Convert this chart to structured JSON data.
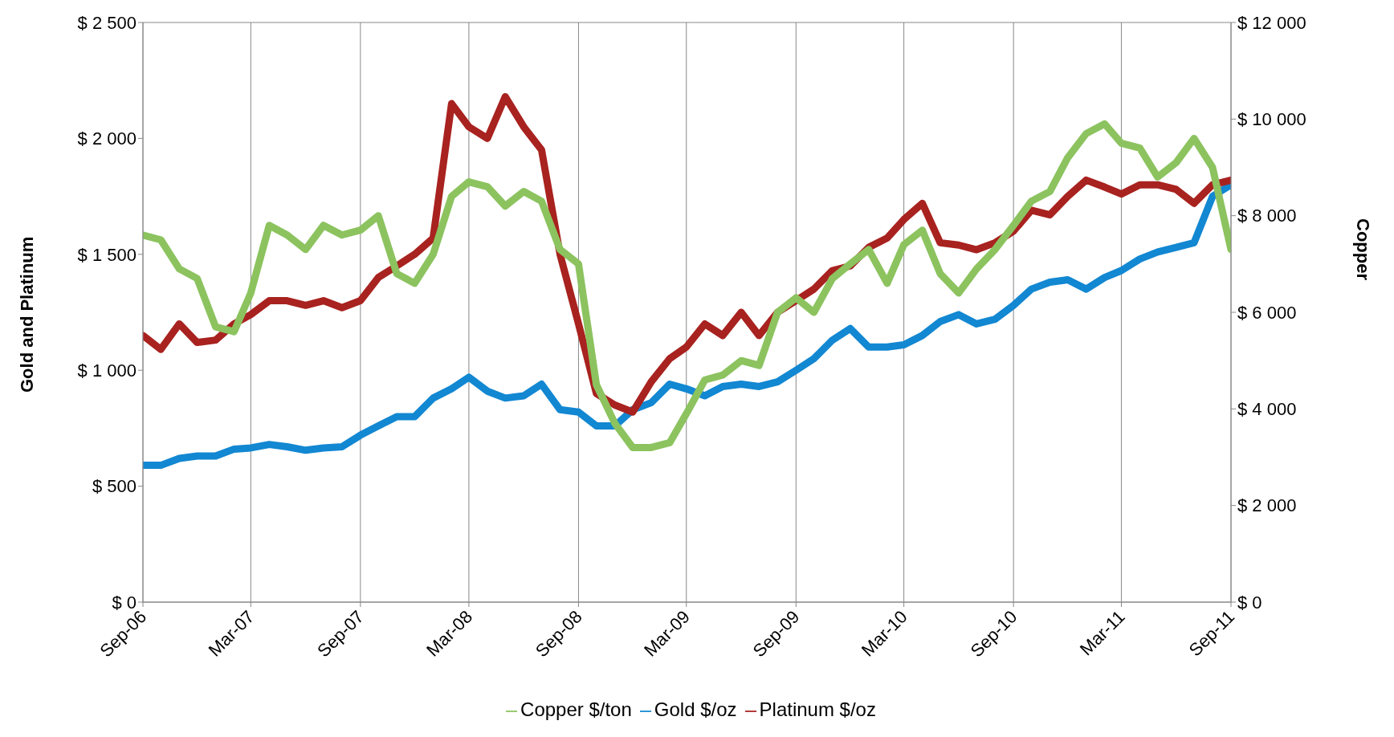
{
  "chart_data": {
    "type": "line",
    "ylabel": "Gold and Platinum",
    "y2label": "Copper",
    "x": [
      "2006-09",
      "2006-10",
      "2006-11",
      "2006-12",
      "2007-01",
      "2007-02",
      "2007-03",
      "2007-04",
      "2007-05",
      "2007-06",
      "2007-07",
      "2007-08",
      "2007-09",
      "2007-10",
      "2007-11",
      "2007-12",
      "2008-01",
      "2008-02",
      "2008-03",
      "2008-04",
      "2008-05",
      "2008-06",
      "2008-07",
      "2008-08",
      "2008-09",
      "2008-10",
      "2008-11",
      "2008-12",
      "2009-01",
      "2009-02",
      "2009-03",
      "2009-04",
      "2009-05",
      "2009-06",
      "2009-07",
      "2009-08",
      "2009-09",
      "2009-10",
      "2009-11",
      "2009-12",
      "2010-01",
      "2010-02",
      "2010-03",
      "2010-04",
      "2010-05",
      "2010-06",
      "2010-07",
      "2010-08",
      "2010-09",
      "2010-10",
      "2010-11",
      "2010-12",
      "2011-01",
      "2011-02",
      "2011-03",
      "2011-04",
      "2011-05",
      "2011-06",
      "2011-07",
      "2011-08",
      "2011-09"
    ],
    "series": [
      {
        "name": "Gold $/oz",
        "color": "#1287d2",
        "values": [
          590,
          590,
          620,
          630,
          630,
          660,
          665,
          680,
          670,
          655,
          665,
          670,
          720,
          760,
          800,
          800,
          880,
          920,
          970,
          910,
          880,
          890,
          940,
          830,
          820,
          760,
          760,
          830,
          860,
          940,
          920,
          890,
          930,
          940,
          930,
          950,
          1000,
          1050,
          1130,
          1180,
          1100,
          1100,
          1110,
          1150,
          1210,
          1240,
          1200,
          1220,
          1280,
          1350,
          1380,
          1390,
          1350,
          1400,
          1430,
          1480,
          1510,
          1530,
          1550,
          1750,
          1800
        ]
      },
      {
        "name": "Platinum $/oz",
        "color": "#a8221f",
        "values": [
          1150,
          1090,
          1200,
          1120,
          1130,
          1200,
          1240,
          1300,
          1300,
          1280,
          1300,
          1270,
          1300,
          1400,
          1450,
          1500,
          1570,
          2150,
          2050,
          2000,
          2180,
          2050,
          1950,
          1500,
          1200,
          900,
          850,
          820,
          950,
          1050,
          1100,
          1200,
          1150,
          1250,
          1150,
          1250,
          1300,
          1350,
          1430,
          1450,
          1530,
          1570,
          1650,
          1720,
          1550,
          1540,
          1520,
          1550,
          1600,
          1690,
          1670,
          1750,
          1820,
          1790,
          1760,
          1800,
          1800,
          1780,
          1720,
          1800,
          1820
        ]
      },
      {
        "name": "Copper $/ton",
        "color": "#8cc35f",
        "axis": "y2",
        "values": [
          7600,
          7500,
          6900,
          6700,
          5700,
          5600,
          6400,
          7800,
          7600,
          7300,
          7800,
          7600,
          7700,
          8000,
          6800,
          6600,
          7200,
          8400,
          8700,
          8600,
          8200,
          8500,
          8300,
          7300,
          7000,
          4500,
          3700,
          3200,
          3200,
          3300,
          3900,
          4600,
          4700,
          5000,
          4900,
          6000,
          6300,
          6000,
          6700,
          7000,
          7300,
          6600,
          7400,
          7700,
          6800,
          6400,
          6900,
          7300,
          7800,
          8300,
          8500,
          9200,
          9700,
          9900,
          9500,
          9400,
          8800,
          9100,
          9600,
          9000,
          7300
        ]
      }
    ],
    "xlim": [
      "2006-09",
      "2011-09"
    ],
    "xticks": [
      {
        "value": "2006-09",
        "label": "Sep-06"
      },
      {
        "value": "2007-03",
        "label": "Mar-07"
      },
      {
        "value": "2007-09",
        "label": "Sep-07"
      },
      {
        "value": "2008-03",
        "label": "Mar-08"
      },
      {
        "value": "2008-09",
        "label": "Sep-08"
      },
      {
        "value": "2009-03",
        "label": "Mar-09"
      },
      {
        "value": "2009-09",
        "label": "Sep-09"
      },
      {
        "value": "2010-03",
        "label": "Mar-10"
      },
      {
        "value": "2010-09",
        "label": "Sep-10"
      },
      {
        "value": "2011-03",
        "label": "Mar-11"
      },
      {
        "value": "2011-09",
        "label": "Sep-11"
      }
    ],
    "ylim": [
      0,
      2500
    ],
    "yticks": [
      {
        "value": 0,
        "label": "$ 0"
      },
      {
        "value": 500,
        "label": "$ 500"
      },
      {
        "value": 1000,
        "label": "$ 1 000"
      },
      {
        "value": 1500,
        "label": "$ 1 500"
      },
      {
        "value": 2000,
        "label": "$ 2 000"
      },
      {
        "value": 2500,
        "label": "$ 2 500"
      }
    ],
    "y2lim": [
      0,
      12000
    ],
    "y2ticks": [
      {
        "value": 0,
        "label": "$ 0"
      },
      {
        "value": 2000,
        "label": "$ 2 000"
      },
      {
        "value": 4000,
        "label": "$ 4 000"
      },
      {
        "value": 6000,
        "label": "$ 6 000"
      },
      {
        "value": 8000,
        "label": "$ 8 000"
      },
      {
        "value": 10000,
        "label": "$ 10 000"
      },
      {
        "value": 12000,
        "label": "$ 12 000"
      }
    ],
    "grid": true,
    "legend": "bottom",
    "marker": "none",
    "line_style": "solid"
  }
}
